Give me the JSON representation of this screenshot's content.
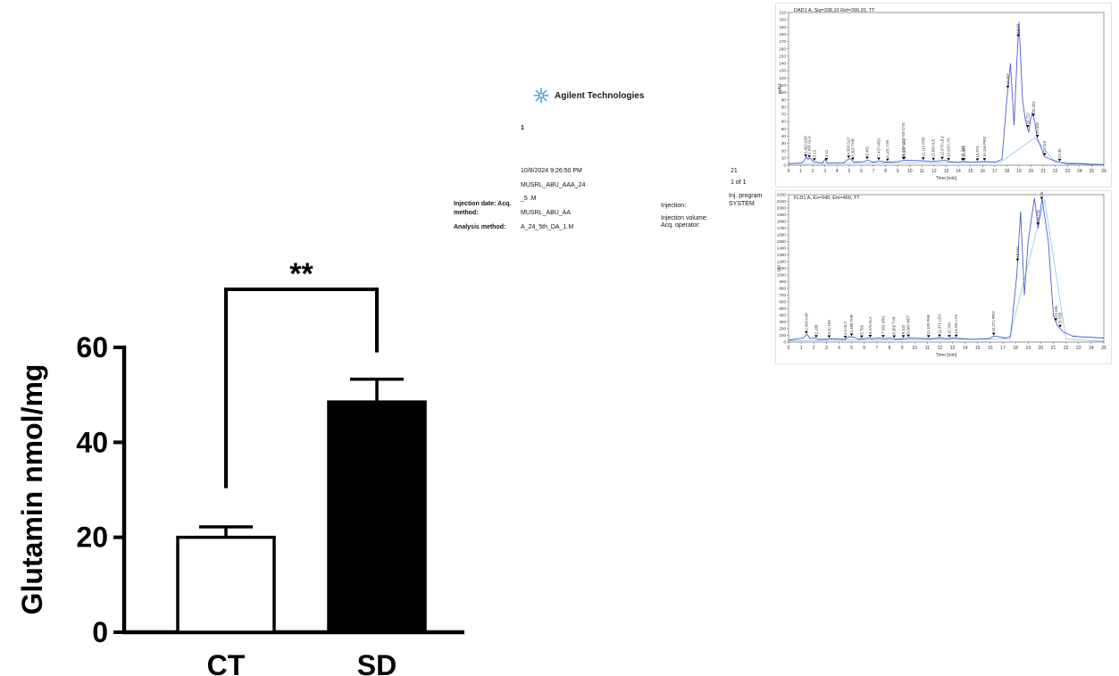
{
  "report": {
    "logo_text": "Agilent Technologies",
    "page_number": "1",
    "datetime": "10/8/2024 9:26:50 PM",
    "sample_name": "MUSRL_ABU_AAA_24",
    "seq_suffix": "_5 .M",
    "injection_date_label": "Injection date: Acq.",
    "method_label": "method:",
    "acq_method": "MUSRL_ABU_AA",
    "analysis_method_label": "Analysis method:",
    "analysis_method": "A_24_5th_DA_1.M",
    "injection_label": "Injection:",
    "injection_volume_label": "Injection volume:",
    "acq_operator_label": "Acq. operator:",
    "location_value": "21",
    "page_of": "1 of 1",
    "inj_program_label": "Inj. program",
    "inj_program_value": "SYSTEM"
  },
  "chart_data": [
    {
      "type": "bar",
      "categories": [
        "CT",
        "SD"
      ],
      "values": [
        20,
        48.5
      ],
      "errors": [
        2.2,
        4.8
      ],
      "colors": [
        "#ffffff",
        "#000000"
      ],
      "ylabel": "Glutamin nmol/mg",
      "yticks": [
        "0",
        "20",
        "40",
        "60"
      ],
      "ylim": [
        0,
        60
      ],
      "significance": "**"
    },
    {
      "type": "line",
      "title": "DAD1 A, Sig=338,10 Ref=390,20, TT",
      "ylabel": "mAU",
      "xlabel": "Time [min]",
      "xlim": [
        0,
        26
      ],
      "ylim": [
        0,
        210
      ],
      "xticks": [
        "0",
        "1",
        "2",
        "3",
        "4",
        "5",
        "6",
        "7",
        "8",
        "9",
        "10",
        "11",
        "12",
        "13",
        "14",
        "15",
        "16",
        "17",
        "18",
        "19",
        "20",
        "21",
        "22",
        "23",
        "24",
        "25",
        "26"
      ],
      "yticks": [
        "0",
        "10",
        "20",
        "30",
        "40",
        "50",
        "60",
        "70",
        "80",
        "90",
        "100",
        "110",
        "120",
        "130",
        "140",
        "150",
        "160",
        "170",
        "180",
        "190",
        "200",
        "210"
      ],
      "x": [
        0,
        1.0,
        1.3,
        1.45,
        1.6,
        1.8,
        2.0,
        2.8,
        3.0,
        3.2,
        4.5,
        4.9,
        5.1,
        5.4,
        6.2,
        6.5,
        7.0,
        7.5,
        8.0,
        9.0,
        9.6,
        11.2,
        11.8,
        12.9,
        13.2,
        14.0,
        14.5,
        15.0,
        16.2,
        17.0,
        17.6,
        18.0,
        18.3,
        18.6,
        18.85,
        19.0,
        19.3,
        19.5,
        19.8,
        19.95,
        20.1,
        20.3,
        20.5,
        20.8,
        21.1,
        21.6,
        22.3,
        23.0,
        24,
        25,
        26
      ],
      "y": [
        2,
        3,
        6,
        12,
        8,
        10,
        5,
        3,
        8,
        3,
        3,
        8,
        9,
        4,
        5,
        7,
        4,
        6,
        4,
        5,
        7,
        6,
        5,
        7,
        5,
        4,
        5,
        4,
        5,
        4,
        8,
        90,
        140,
        55,
        150,
        197,
        90,
        65,
        45,
        62,
        72,
        60,
        38,
        25,
        12,
        8,
        4,
        2,
        2,
        1,
        1
      ],
      "labels": [
        "1.402 ASP",
        "1.695 GLU",
        "2.12",
        "3.12",
        "4.953 GLY",
        "5.302 THR",
        "6.482",
        "7.437 ARG",
        "8.165 TYR",
        "9.470 CYS-SS-CYS",
        "9.547 VAL",
        "11.110 PHE",
        "11.950 ILE",
        "12.673 LEU",
        "13.192 LYS",
        "14.348",
        "14.461",
        "15.574",
        "16.159 PRO",
        "18.087",
        "18.93",
        "19.722",
        "20.202",
        "20.525",
        "21.119",
        "22.35"
      ]
    },
    {
      "type": "line",
      "title": "FLD1 A, Ex=340, Em=450, TT",
      "ylabel": "LU",
      "xlabel": "Time [min]",
      "xlim": [
        0,
        25
      ],
      "ylim": [
        0,
        2200
      ],
      "xticks": [
        "0",
        "1",
        "2",
        "3",
        "4",
        "5",
        "6",
        "7",
        "8",
        "9",
        "10",
        "11",
        "12",
        "13",
        "14",
        "15",
        "16",
        "17",
        "18",
        "19",
        "20",
        "21",
        "22",
        "23",
        "24",
        "25"
      ],
      "yticks": [
        "0",
        "100",
        "200",
        "300",
        "400",
        "500",
        "600",
        "700",
        "800",
        "900",
        "1000",
        "1100",
        "1200",
        "1300",
        "1400",
        "1500",
        "1600",
        "1700",
        "1800",
        "1900",
        "2000",
        "2100",
        "2200"
      ],
      "x": [
        0,
        1.2,
        1.45,
        1.7,
        2.0,
        2.4,
        3.0,
        3.3,
        4.5,
        4.8,
        5.2,
        5.6,
        6.3,
        6.6,
        7.2,
        7.6,
        8.1,
        8.5,
        9.1,
        9.6,
        11.2,
        11.9,
        12.6,
        13.1,
        14.5,
        15.9,
        16.3,
        17.2,
        17.6,
        18.1,
        18.4,
        18.7,
        19.0,
        19.5,
        19.8,
        20.1,
        20.6,
        21.0,
        21.3,
        21.8,
        22.5,
        23,
        24,
        25
      ],
      "y": [
        30,
        60,
        120,
        50,
        60,
        40,
        40,
        50,
        40,
        80,
        70,
        40,
        60,
        50,
        60,
        50,
        60,
        40,
        50,
        60,
        50,
        60,
        50,
        60,
        40,
        50,
        90,
        60,
        80,
        1000,
        1950,
        700,
        1500,
        2150,
        1700,
        2150,
        1500,
        400,
        250,
        150,
        90,
        80,
        70,
        60
      ],
      "labels": [
        "1.409 ASP",
        "2.188",
        "3.22 HIS",
        "4.5 GLY",
        "4.998 THR",
        "5.795",
        "6.475 ALA",
        "7.503 ARG",
        "8.369 TYR",
        "9.102",
        "9.500 MET",
        "11.100 PHE",
        "11.971 LEU",
        "12.746",
        "13.291 LYS",
        "16.271 PRO",
        "18.161",
        "19.779",
        "20.077",
        "21.195",
        "21.535"
      ]
    }
  ]
}
